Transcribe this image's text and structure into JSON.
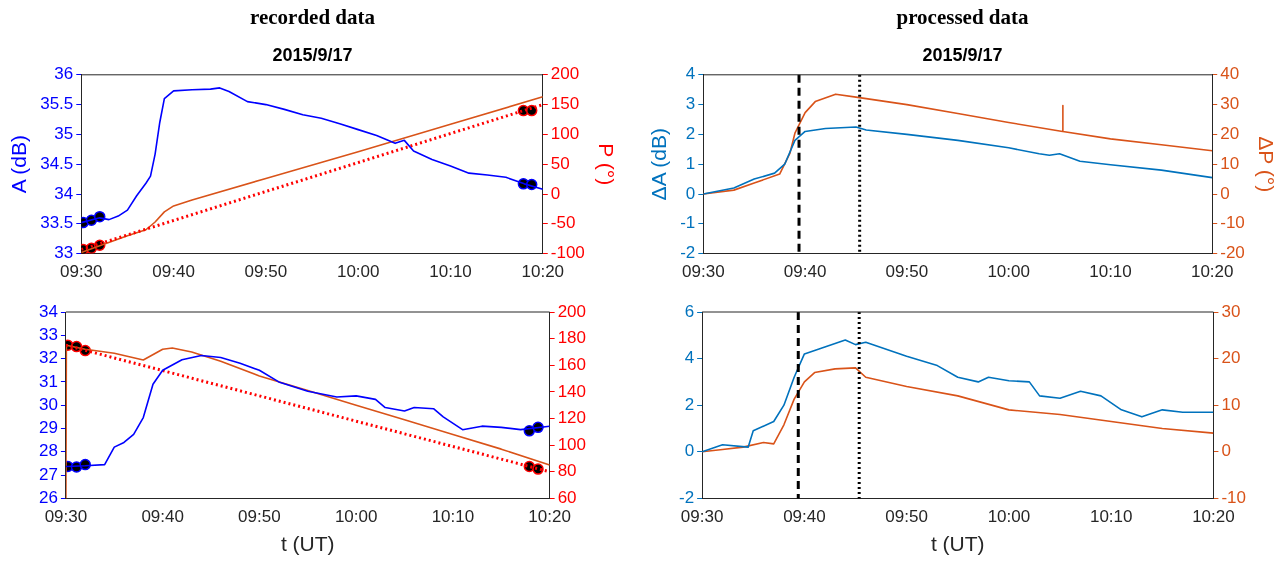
{
  "chart_data": [
    {
      "type": "line",
      "title": "recorded data",
      "subtitle": "2015/9/17",
      "ylabel": "A (dB)",
      "y2label": "P (°)",
      "xlim": [
        9.5,
        10.3333
      ],
      "xticks": [
        {
          "value": 9.5,
          "label": "09:30"
        },
        {
          "value": 9.6667,
          "label": "09:40"
        },
        {
          "value": 9.8333,
          "label": "09:50"
        },
        {
          "value": 10,
          "label": "10:00"
        },
        {
          "value": 10.1667,
          "label": "10:10"
        },
        {
          "value": 10.3333,
          "label": "10:20"
        }
      ],
      "ylim": [
        33,
        36
      ],
      "yticks": [
        33,
        33.5,
        34,
        34.5,
        35,
        35.5,
        36
      ],
      "y2lim": [
        -100,
        200
      ],
      "y2ticks": [
        -100,
        -50,
        0,
        50,
        100,
        150,
        200
      ],
      "series": [
        {
          "type": "line",
          "color": "#0000ff",
          "axis": "y",
          "x": [
            9.5,
            9.5333,
            9.55,
            9.5667,
            9.5833,
            9.6,
            9.6167,
            9.625,
            9.6333,
            9.6417,
            9.65,
            9.6667,
            9.7,
            9.7333,
            9.75,
            9.7667,
            9.8,
            9.8333,
            9.8667,
            9.9,
            9.9333,
            9.9667,
            10,
            10.0333,
            10.0667,
            10.0833,
            10.1,
            10.1333,
            10.1667,
            10.2,
            10.2333,
            10.2667,
            10.3,
            10.3333
          ],
          "values": [
            33.52,
            33.6,
            33.57,
            33.63,
            33.73,
            33.97,
            34.18,
            34.3,
            34.67,
            35.2,
            35.6,
            35.73,
            35.75,
            35.76,
            35.78,
            35.72,
            35.55,
            35.5,
            35.42,
            35.33,
            35.27,
            35.18,
            35.08,
            34.98,
            34.85,
            34.9,
            34.72,
            34.58,
            34.47,
            34.35,
            34.32,
            34.28,
            34.17,
            34.08
          ]
        },
        {
          "type": "line",
          "color": "#ff0000",
          "axis": "y2",
          "line_style": "dotted",
          "x": [
            9.5,
            10.3333
          ],
          "values": [
            -93,
            150
          ]
        },
        {
          "type": "line",
          "color": "#d95319",
          "axis": "y2",
          "x": [
            9.5,
            9.5333,
            9.5833,
            9.6167,
            9.6333,
            9.65,
            9.6667,
            9.7,
            9.8333,
            10,
            10.1667,
            10.3333
          ],
          "values": [
            -98,
            -87,
            -70,
            -60,
            -47,
            -30,
            -20,
            -10,
            26,
            71,
            117,
            163
          ]
        },
        {
          "type": "scatter",
          "color": "#000000",
          "axis": "y",
          "x": [
            9.5033,
            9.5183,
            9.5333,
            10.2983,
            10.3133
          ],
          "values": [
            33.52,
            33.56,
            33.62,
            34.17,
            34.16
          ]
        },
        {
          "type": "scatter",
          "color": "#000000",
          "axis": "y2",
          "x": [
            9.5033,
            9.5183,
            9.5333,
            10.2983,
            10.3133
          ],
          "values": [
            -93,
            -91,
            -86,
            140,
            140
          ]
        }
      ]
    },
    {
      "type": "line",
      "xlabel": "t (UT)",
      "xlim": [
        9.5,
        10.3333
      ],
      "xticks": [
        {
          "value": 9.5,
          "label": "09:30"
        },
        {
          "value": 9.6667,
          "label": "09:40"
        },
        {
          "value": 9.8333,
          "label": "09:50"
        },
        {
          "value": 10,
          "label": "10:00"
        },
        {
          "value": 10.1667,
          "label": "10:10"
        },
        {
          "value": 10.3333,
          "label": "10:20"
        }
      ],
      "ylim": [
        26,
        34
      ],
      "yticks": [
        26,
        27,
        28,
        29,
        30,
        31,
        32,
        33,
        34
      ],
      "y2lim": [
        60,
        200
      ],
      "y2ticks": [
        60,
        80,
        100,
        120,
        140,
        160,
        180,
        200
      ],
      "series": [
        {
          "type": "line",
          "color": "#0000ff",
          "axis": "y",
          "x": [
            9.5,
            9.5333,
            9.5667,
            9.5833,
            9.6,
            9.6167,
            9.6333,
            9.65,
            9.6667,
            9.7,
            9.7333,
            9.7667,
            9.8,
            9.8333,
            9.8667,
            9.9167,
            9.9667,
            10,
            10.0333,
            10.05,
            10.0833,
            10.1,
            10.1333,
            10.15,
            10.1833,
            10.2167,
            10.25,
            10.2833,
            10.3333
          ],
          "values": [
            27.37,
            27.4,
            27.45,
            28.2,
            28.4,
            28.75,
            29.47,
            30.9,
            31.5,
            31.95,
            32.13,
            32.05,
            31.8,
            31.5,
            31.0,
            30.6,
            30.35,
            30.4,
            30.25,
            29.9,
            29.75,
            29.9,
            29.85,
            29.5,
            28.95,
            29.1,
            29.05,
            28.95,
            29.1
          ]
        },
        {
          "type": "line",
          "color": "#ff0000",
          "axis": "y2",
          "line_style": "dotted",
          "x": [
            9.5,
            10.3333
          ],
          "values": [
            175,
            80
          ]
        },
        {
          "type": "line",
          "color": "#d95319",
          "axis": "y2",
          "x": [
            9.5,
            9.5008,
            9.5333,
            9.5833,
            9.6333,
            9.6667,
            9.6833,
            9.7167,
            9.7667,
            9.8333,
            9.9167,
            10,
            10.0833,
            10.1667,
            10.25,
            10.3333
          ],
          "values": [
            60,
            175,
            172,
            169,
            164,
            172,
            173,
            170,
            163,
            152,
            141,
            130,
            119,
            108,
            97,
            85
          ]
        },
        {
          "type": "scatter",
          "color": "#000000",
          "axis": "y",
          "x": [
            9.5033,
            9.5183,
            9.5333,
            10.2983,
            10.3133
          ],
          "values": [
            27.37,
            27.35,
            27.45,
            28.9,
            29.05
          ]
        },
        {
          "type": "scatter",
          "color": "#000000",
          "axis": "y2",
          "x": [
            9.5033,
            9.5183,
            9.5333,
            10.2983,
            10.3133
          ],
          "values": [
            175,
            174,
            171,
            84,
            82
          ]
        }
      ]
    },
    {
      "type": "line",
      "title": "processed data",
      "subtitle": "2015/9/17",
      "ylabel": "ΔA (dB)",
      "y2label": "ΔP (°)",
      "xlim": [
        9.5,
        10.3333
      ],
      "xticks": [
        {
          "value": 9.5,
          "label": "09:30"
        },
        {
          "value": 9.6667,
          "label": "09:40"
        },
        {
          "value": 9.8333,
          "label": "09:50"
        },
        {
          "value": 10,
          "label": "10:00"
        },
        {
          "value": 10.1667,
          "label": "10:10"
        },
        {
          "value": 10.3333,
          "label": "10:20"
        }
      ],
      "ylim": [
        -2,
        4
      ],
      "yticks": [
        -2,
        -1,
        0,
        1,
        2,
        3,
        4
      ],
      "y2lim": [
        -20,
        40
      ],
      "y2ticks": [
        -20,
        -10,
        0,
        10,
        20,
        30,
        40
      ],
      "ref_lines": [
        {
          "axis": "x",
          "value": 9.6567,
          "color": "#000000",
          "line_style": "dashed"
        },
        {
          "axis": "x",
          "value": 9.756,
          "color": "#000000",
          "line_style": "dotted"
        }
      ],
      "series": [
        {
          "type": "line",
          "color": "#0072bd",
          "axis": "y",
          "x": [
            9.5,
            9.55,
            9.5833,
            9.6167,
            9.6333,
            9.65,
            9.6667,
            9.7,
            9.75,
            9.7667,
            9.8333,
            9.9167,
            10,
            10.05,
            10.0667,
            10.0833,
            10.1167,
            10.1667,
            10.25,
            10.3333
          ],
          "values": [
            0,
            0.2,
            0.5,
            0.7,
            1.0,
            1.8,
            2.1,
            2.2,
            2.25,
            2.15,
            2.0,
            1.8,
            1.55,
            1.35,
            1.3,
            1.35,
            1.1,
            0.98,
            0.8,
            0.55
          ]
        },
        {
          "type": "line",
          "color": "#d95319",
          "axis": "y2",
          "x": [
            9.5,
            9.55,
            9.5833,
            9.625,
            9.6417,
            9.65,
            9.6667,
            9.6833,
            9.7167,
            9.75,
            9.7667,
            9.8333,
            9.9167,
            10,
            10.0883,
            10.0886,
            10.0889,
            10.1667,
            10.25,
            10.3333
          ],
          "values": [
            0,
            1.3,
            3.7,
            6.7,
            13.6,
            20.4,
            27.3,
            31,
            33.5,
            32.5,
            32,
            30,
            27,
            24,
            21,
            29.7,
            21,
            18.5,
            16.5,
            14.5
          ]
        }
      ]
    },
    {
      "type": "line",
      "xlabel": "t (UT)",
      "xlim": [
        9.5,
        10.3333
      ],
      "xticks": [
        {
          "value": 9.5,
          "label": "09:30"
        },
        {
          "value": 9.6667,
          "label": "09:40"
        },
        {
          "value": 9.8333,
          "label": "09:50"
        },
        {
          "value": 10,
          "label": "10:00"
        },
        {
          "value": 10.1667,
          "label": "10:10"
        },
        {
          "value": 10.3333,
          "label": "10:20"
        }
      ],
      "ylim": [
        -2,
        6
      ],
      "yticks": [
        -2,
        0,
        2,
        4,
        6
      ],
      "y2lim": [
        -10,
        30
      ],
      "y2ticks": [
        -10,
        0,
        10,
        20,
        30
      ],
      "ref_lines": [
        {
          "axis": "x",
          "value": 9.6567,
          "color": "#000000",
          "line_style": "dashed"
        },
        {
          "axis": "x",
          "value": 9.756,
          "color": "#000000",
          "line_style": "dotted"
        }
      ],
      "series": [
        {
          "type": "line",
          "color": "#0072bd",
          "axis": "y",
          "x": [
            9.5,
            9.5333,
            9.575,
            9.5833,
            9.6167,
            9.6333,
            9.65,
            9.6667,
            9.7,
            9.7333,
            9.75,
            9.7667,
            9.8,
            9.8333,
            9.8833,
            9.9167,
            9.95,
            9.9667,
            10,
            10.0333,
            10.05,
            10.0833,
            10.1167,
            10.15,
            10.1833,
            10.2167,
            10.25,
            10.2833,
            10.3333
          ],
          "values": [
            0,
            0.3,
            0.2,
            0.9,
            1.3,
            2.0,
            3.2,
            4.2,
            4.5,
            4.8,
            4.6,
            4.7,
            4.4,
            4.1,
            3.7,
            3.2,
            3.0,
            3.2,
            3.05,
            3.0,
            2.4,
            2.3,
            2.6,
            2.4,
            1.8,
            1.5,
            1.8,
            1.7,
            1.7
          ]
        },
        {
          "type": "line",
          "color": "#d95319",
          "axis": "y2",
          "x": [
            9.5,
            9.5333,
            9.5667,
            9.6,
            9.6167,
            9.6333,
            9.65,
            9.6667,
            9.6833,
            9.7167,
            9.75,
            9.7667,
            9.8333,
            9.9167,
            10,
            10.0833,
            10.1667,
            10.25,
            10.3333
          ],
          "values": [
            0,
            0.5,
            1,
            2,
            1.7,
            5.8,
            11.3,
            15,
            17,
            17.8,
            18,
            16,
            14,
            12,
            9,
            8,
            6.5,
            5,
            4
          ]
        }
      ]
    }
  ]
}
